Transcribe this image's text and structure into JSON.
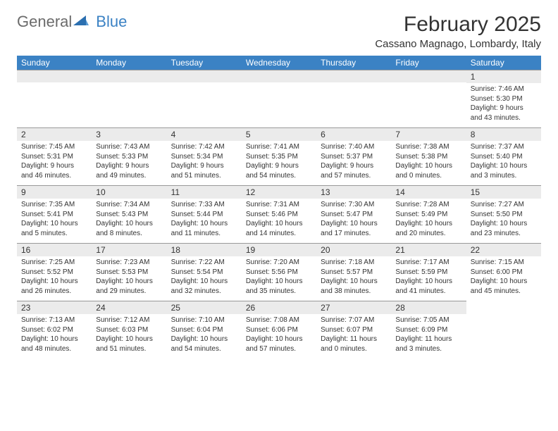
{
  "logo": {
    "text_general": "General",
    "text_blue": "Blue",
    "icon_color": "#2b6fb0"
  },
  "header": {
    "month_title": "February 2025",
    "location": "Cassano Magnago, Lombardy, Italy"
  },
  "colors": {
    "header_bar": "#3b82c4",
    "day_bar_bg": "#ebebeb",
    "day_bar_border": "#999999",
    "text": "#333333"
  },
  "weekdays": [
    "Sunday",
    "Monday",
    "Tuesday",
    "Wednesday",
    "Thursday",
    "Friday",
    "Saturday"
  ],
  "weeks": [
    [
      null,
      null,
      null,
      null,
      null,
      null,
      {
        "n": "1",
        "sunrise": "Sunrise: 7:46 AM",
        "sunset": "Sunset: 5:30 PM",
        "daylight1": "Daylight: 9 hours",
        "daylight2": "and 43 minutes."
      }
    ],
    [
      {
        "n": "2",
        "sunrise": "Sunrise: 7:45 AM",
        "sunset": "Sunset: 5:31 PM",
        "daylight1": "Daylight: 9 hours",
        "daylight2": "and 46 minutes."
      },
      {
        "n": "3",
        "sunrise": "Sunrise: 7:43 AM",
        "sunset": "Sunset: 5:33 PM",
        "daylight1": "Daylight: 9 hours",
        "daylight2": "and 49 minutes."
      },
      {
        "n": "4",
        "sunrise": "Sunrise: 7:42 AM",
        "sunset": "Sunset: 5:34 PM",
        "daylight1": "Daylight: 9 hours",
        "daylight2": "and 51 minutes."
      },
      {
        "n": "5",
        "sunrise": "Sunrise: 7:41 AM",
        "sunset": "Sunset: 5:35 PM",
        "daylight1": "Daylight: 9 hours",
        "daylight2": "and 54 minutes."
      },
      {
        "n": "6",
        "sunrise": "Sunrise: 7:40 AM",
        "sunset": "Sunset: 5:37 PM",
        "daylight1": "Daylight: 9 hours",
        "daylight2": "and 57 minutes."
      },
      {
        "n": "7",
        "sunrise": "Sunrise: 7:38 AM",
        "sunset": "Sunset: 5:38 PM",
        "daylight1": "Daylight: 10 hours",
        "daylight2": "and 0 minutes."
      },
      {
        "n": "8",
        "sunrise": "Sunrise: 7:37 AM",
        "sunset": "Sunset: 5:40 PM",
        "daylight1": "Daylight: 10 hours",
        "daylight2": "and 3 minutes."
      }
    ],
    [
      {
        "n": "9",
        "sunrise": "Sunrise: 7:35 AM",
        "sunset": "Sunset: 5:41 PM",
        "daylight1": "Daylight: 10 hours",
        "daylight2": "and 5 minutes."
      },
      {
        "n": "10",
        "sunrise": "Sunrise: 7:34 AM",
        "sunset": "Sunset: 5:43 PM",
        "daylight1": "Daylight: 10 hours",
        "daylight2": "and 8 minutes."
      },
      {
        "n": "11",
        "sunrise": "Sunrise: 7:33 AM",
        "sunset": "Sunset: 5:44 PM",
        "daylight1": "Daylight: 10 hours",
        "daylight2": "and 11 minutes."
      },
      {
        "n": "12",
        "sunrise": "Sunrise: 7:31 AM",
        "sunset": "Sunset: 5:46 PM",
        "daylight1": "Daylight: 10 hours",
        "daylight2": "and 14 minutes."
      },
      {
        "n": "13",
        "sunrise": "Sunrise: 7:30 AM",
        "sunset": "Sunset: 5:47 PM",
        "daylight1": "Daylight: 10 hours",
        "daylight2": "and 17 minutes."
      },
      {
        "n": "14",
        "sunrise": "Sunrise: 7:28 AM",
        "sunset": "Sunset: 5:49 PM",
        "daylight1": "Daylight: 10 hours",
        "daylight2": "and 20 minutes."
      },
      {
        "n": "15",
        "sunrise": "Sunrise: 7:27 AM",
        "sunset": "Sunset: 5:50 PM",
        "daylight1": "Daylight: 10 hours",
        "daylight2": "and 23 minutes."
      }
    ],
    [
      {
        "n": "16",
        "sunrise": "Sunrise: 7:25 AM",
        "sunset": "Sunset: 5:52 PM",
        "daylight1": "Daylight: 10 hours",
        "daylight2": "and 26 minutes."
      },
      {
        "n": "17",
        "sunrise": "Sunrise: 7:23 AM",
        "sunset": "Sunset: 5:53 PM",
        "daylight1": "Daylight: 10 hours",
        "daylight2": "and 29 minutes."
      },
      {
        "n": "18",
        "sunrise": "Sunrise: 7:22 AM",
        "sunset": "Sunset: 5:54 PM",
        "daylight1": "Daylight: 10 hours",
        "daylight2": "and 32 minutes."
      },
      {
        "n": "19",
        "sunrise": "Sunrise: 7:20 AM",
        "sunset": "Sunset: 5:56 PM",
        "daylight1": "Daylight: 10 hours",
        "daylight2": "and 35 minutes."
      },
      {
        "n": "20",
        "sunrise": "Sunrise: 7:18 AM",
        "sunset": "Sunset: 5:57 PM",
        "daylight1": "Daylight: 10 hours",
        "daylight2": "and 38 minutes."
      },
      {
        "n": "21",
        "sunrise": "Sunrise: 7:17 AM",
        "sunset": "Sunset: 5:59 PM",
        "daylight1": "Daylight: 10 hours",
        "daylight2": "and 41 minutes."
      },
      {
        "n": "22",
        "sunrise": "Sunrise: 7:15 AM",
        "sunset": "Sunset: 6:00 PM",
        "daylight1": "Daylight: 10 hours",
        "daylight2": "and 45 minutes."
      }
    ],
    [
      {
        "n": "23",
        "sunrise": "Sunrise: 7:13 AM",
        "sunset": "Sunset: 6:02 PM",
        "daylight1": "Daylight: 10 hours",
        "daylight2": "and 48 minutes."
      },
      {
        "n": "24",
        "sunrise": "Sunrise: 7:12 AM",
        "sunset": "Sunset: 6:03 PM",
        "daylight1": "Daylight: 10 hours",
        "daylight2": "and 51 minutes."
      },
      {
        "n": "25",
        "sunrise": "Sunrise: 7:10 AM",
        "sunset": "Sunset: 6:04 PM",
        "daylight1": "Daylight: 10 hours",
        "daylight2": "and 54 minutes."
      },
      {
        "n": "26",
        "sunrise": "Sunrise: 7:08 AM",
        "sunset": "Sunset: 6:06 PM",
        "daylight1": "Daylight: 10 hours",
        "daylight2": "and 57 minutes."
      },
      {
        "n": "27",
        "sunrise": "Sunrise: 7:07 AM",
        "sunset": "Sunset: 6:07 PM",
        "daylight1": "Daylight: 11 hours",
        "daylight2": "and 0 minutes."
      },
      {
        "n": "28",
        "sunrise": "Sunrise: 7:05 AM",
        "sunset": "Sunset: 6:09 PM",
        "daylight1": "Daylight: 11 hours",
        "daylight2": "and 3 minutes."
      },
      null
    ]
  ]
}
